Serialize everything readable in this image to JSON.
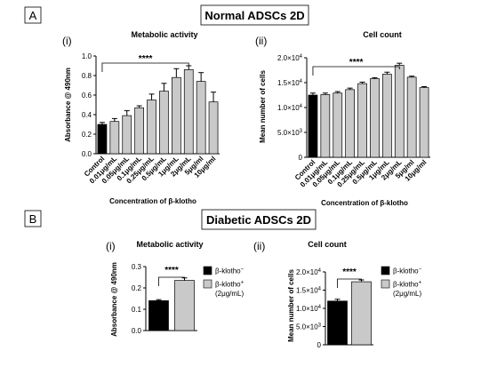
{
  "section_a": {
    "letter": "A",
    "title": "Normal ADSCs 2D",
    "panel_i": "(i)",
    "panel_ii": "(ii)"
  },
  "section_b": {
    "letter": "B",
    "title": "Diabetic ADSCs 2D",
    "panel_i": "(i)",
    "panel_ii": "(ii)"
  },
  "legend": {
    "minus_base": "β-klotho",
    "minus_sup": "−",
    "plus_base": "β-klotho",
    "plus_sup": "+",
    "plus_note": "(2μg/mL)"
  },
  "colors": {
    "control": "#000000",
    "treated": "#c9c9c9",
    "stroke": "#000000"
  },
  "chart_data": [
    {
      "type": "bar",
      "title": "Metabolic activity",
      "xlabel": "Concentration of β-klotho",
      "ylabel": "Absorbance @ 490nm",
      "categories": [
        "Control",
        "0.01μg/mL",
        "0.05μg/mL",
        "0.1μg/mL",
        "0.25μg/mL",
        "0.5μg/mL",
        "1μg/mL",
        "2μg/mL",
        "5μg/ml",
        "10μg/ml"
      ],
      "values": [
        0.3,
        0.33,
        0.39,
        0.47,
        0.55,
        0.64,
        0.78,
        0.86,
        0.74,
        0.53
      ],
      "errors": [
        0.02,
        0.03,
        0.05,
        0.02,
        0.06,
        0.08,
        0.09,
        0.04,
        0.09,
        0.1
      ],
      "ylim": [
        0,
        1.0
      ],
      "yticks": [
        0,
        0.2,
        0.4,
        0.6,
        0.8,
        1.0
      ],
      "ytick_labels": [
        "0.0",
        "0.2",
        "0.4",
        "0.6",
        "0.8",
        "1.0"
      ],
      "significance": {
        "label": "****",
        "from": "Control",
        "to": "2μg/mL"
      },
      "grid": false
    },
    {
      "type": "bar",
      "title": "Cell count",
      "xlabel": "Concentration of β-klotho",
      "ylabel": "Mean number of cells",
      "categories": [
        "Control",
        "0.01μg/mL",
        "0.05μg/mL",
        "0.1μg/mL",
        "0.25μg/mL",
        "0.5μg/mL",
        "1μg/mL",
        "2μg/mL",
        "5μg/ml",
        "10μg/ml"
      ],
      "values": [
        12500,
        12600,
        12900,
        13600,
        14800,
        15800,
        16700,
        18500,
        16100,
        14000
      ],
      "errors": [
        400,
        300,
        300,
        300,
        300,
        200,
        400,
        400,
        200,
        200
      ],
      "ylim": [
        0,
        20000
      ],
      "yticks": [
        0,
        5000,
        10000,
        15000,
        20000
      ],
      "ytick_labels": [
        {
          "base": "0",
          "sup": ""
        },
        {
          "base": "5.0×10",
          "sup": "3"
        },
        {
          "base": "1.0×10",
          "sup": "4"
        },
        {
          "base": "1.5×10",
          "sup": "4"
        },
        {
          "base": "2.0×10",
          "sup": "4"
        }
      ],
      "significance": {
        "label": "****",
        "from": "Control",
        "to": "2μg/mL"
      },
      "grid": false
    },
    {
      "type": "bar",
      "title": "Metabolic activity",
      "ylabel": "Absorbance @ 490nm",
      "categories": [
        "β-klotho−",
        "β-klotho+ (2μg/mL)"
      ],
      "values": [
        0.14,
        0.235
      ],
      "errors": [
        0.005,
        0.012
      ],
      "ylim": [
        0,
        0.3
      ],
      "yticks": [
        0,
        0.1,
        0.2,
        0.3
      ],
      "ytick_labels": [
        "0.0",
        "0.1",
        "0.2",
        "0.3"
      ],
      "significance": {
        "label": "****"
      },
      "legend": "right",
      "grid": false
    },
    {
      "type": "bar",
      "title": "Cell count",
      "ylabel": "Mean number of cells",
      "categories": [
        "β-klotho−",
        "β-klotho+ (2μg/mL)"
      ],
      "values": [
        12000,
        17300
      ],
      "errors": [
        500,
        500
      ],
      "ylim": [
        0,
        20000
      ],
      "yticks": [
        0,
        5000,
        10000,
        15000,
        20000
      ],
      "ytick_labels": [
        {
          "base": "0",
          "sup": ""
        },
        {
          "base": "5.0×10",
          "sup": "3"
        },
        {
          "base": "1.0×10",
          "sup": "4"
        },
        {
          "base": "1.5×10",
          "sup": "4"
        },
        {
          "base": "2.0×10",
          "sup": "4"
        }
      ],
      "significance": {
        "label": "****"
      },
      "legend": "right",
      "grid": false
    }
  ]
}
